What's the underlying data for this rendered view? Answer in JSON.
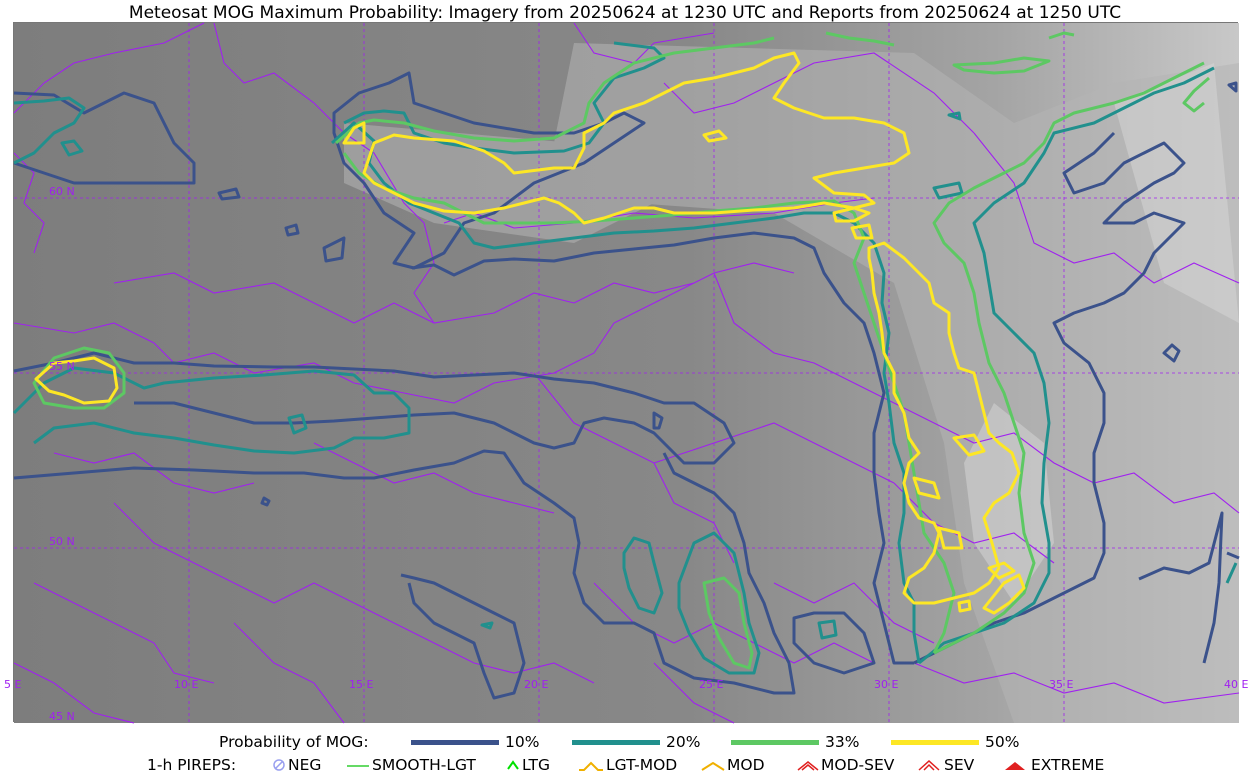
{
  "title": "Meteosat MOG Maximum Probability: Imagery from 20250624 at 1230 UTC and Reports from 20250624 at 1250 UTC",
  "map": {
    "lat_labels": [
      "60 N",
      "55 N",
      "50 N",
      "45 N"
    ],
    "lon_labels": [
      "5 E",
      "10 E",
      "15 E",
      "20 E",
      "25 E",
      "30 E",
      "35 E",
      "40 E"
    ],
    "colors": {
      "border": "#a020f0",
      "grid": "#a020f0",
      "p10": "#3b528b",
      "p20": "#21908d",
      "p33": "#5dc863",
      "p50": "#fde725"
    }
  },
  "legend": {
    "probability_label": "Probability of MOG:",
    "probability_items": [
      {
        "label": "10%",
        "color": "#3b528b"
      },
      {
        "label": "20%",
        "color": "#21908d"
      },
      {
        "label": "33%",
        "color": "#5dc863"
      },
      {
        "label": "50%",
        "color": "#fde725"
      }
    ],
    "pirep_label": "1-h PIREPS:",
    "pirep_items": [
      {
        "label": "NEG",
        "icon": "neg-icon",
        "color": "#9aa0f0"
      },
      {
        "label": "SMOOTH-LGT",
        "icon": "smooth-lgt-icon",
        "color": "#32cd32"
      },
      {
        "label": "LTG",
        "icon": "ltg-icon",
        "color": "#00e000"
      },
      {
        "label": "LGT-MOD",
        "icon": "lgt-mod-icon",
        "color": "#f0b000"
      },
      {
        "label": "MOD",
        "icon": "mod-icon",
        "color": "#f0b000"
      },
      {
        "label": "MOD-SEV",
        "icon": "mod-sev-icon",
        "color": "#e02020"
      },
      {
        "label": "SEV",
        "icon": "sev-icon",
        "color": "#e02020"
      },
      {
        "label": "EXTREME",
        "icon": "extreme-icon",
        "color": "#e02020"
      }
    ]
  }
}
